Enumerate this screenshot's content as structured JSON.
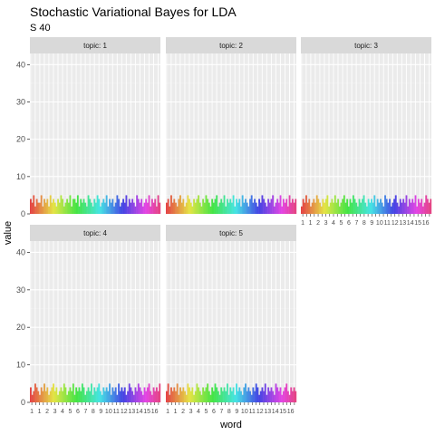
{
  "chart_data": {
    "type": "bar",
    "title": "Stochastic Variational Bayes for LDA",
    "subtitle": "S 40",
    "xlabel": "word",
    "ylabel": "value",
    "ylim": [
      0,
      43
    ],
    "y_ticks": [
      0,
      10,
      20,
      30,
      40
    ],
    "x_tick_labels": [
      "1",
      "1",
      "1",
      "1",
      "2",
      "1",
      "3",
      "1",
      "4",
      "1",
      "5",
      "1",
      "6",
      "1",
      "7",
      "1",
      "8",
      "1",
      "9",
      "1",
      "10",
      "1",
      "11",
      "1",
      "12",
      "1",
      "13",
      "1",
      "14",
      "1",
      "15",
      "1",
      "16",
      "1"
    ],
    "facet_prefix": "topic: ",
    "facets": [
      {
        "topic": "1",
        "values": [
          4,
          3,
          5,
          2,
          4,
          3,
          3,
          5,
          2,
          4,
          3,
          4,
          2,
          5,
          3,
          4,
          3,
          2,
          4,
          3,
          5,
          4,
          2,
          3,
          4,
          3,
          5,
          2,
          4,
          4,
          3,
          5,
          2,
          4,
          3,
          4,
          3,
          2,
          5,
          4,
          3,
          2,
          4,
          3,
          5,
          4,
          2,
          3,
          4,
          3,
          5,
          2,
          4,
          3,
          4,
          2,
          3,
          5,
          4,
          2,
          3,
          4,
          3,
          5,
          2,
          4,
          3,
          4,
          3,
          2,
          5,
          4,
          3,
          4,
          2,
          3,
          4,
          3,
          5,
          2,
          4,
          3,
          4,
          2,
          5,
          3
        ]
      },
      {
        "topic": "2",
        "values": [
          3,
          4,
          2,
          5,
          3,
          4,
          3,
          2,
          4,
          5,
          3,
          4,
          2,
          3,
          5,
          4,
          3,
          2,
          4,
          3,
          4,
          5,
          3,
          2,
          4,
          3,
          5,
          4,
          3,
          2,
          4,
          3,
          4,
          5,
          2,
          3,
          4,
          3,
          5,
          2,
          4,
          3,
          4,
          3,
          5,
          2,
          4,
          3,
          4,
          2,
          5,
          3,
          4,
          3,
          2,
          4,
          5,
          3,
          4,
          3,
          2,
          4,
          3,
          5,
          4,
          3,
          2,
          4,
          3,
          4,
          5,
          2,
          3,
          4,
          3,
          5,
          2,
          4,
          3,
          4,
          2,
          5,
          3,
          4,
          3,
          4
        ]
      },
      {
        "topic": "3",
        "values": [
          2,
          4,
          3,
          5,
          3,
          4,
          2,
          3,
          4,
          3,
          5,
          4,
          3,
          2,
          4,
          3,
          4,
          5,
          2,
          3,
          4,
          3,
          5,
          3,
          4,
          2,
          3,
          4,
          5,
          3,
          4,
          2,
          4,
          3,
          5,
          4,
          3,
          2,
          4,
          3,
          4,
          5,
          3,
          2,
          4,
          3,
          4,
          3,
          5,
          2,
          4,
          3,
          4,
          3,
          2,
          5,
          4,
          3,
          4,
          2,
          3,
          4,
          5,
          3,
          2,
          4,
          3,
          4,
          3,
          5,
          2,
          4,
          3,
          4,
          3,
          5,
          2,
          4,
          3,
          4,
          2,
          3,
          5,
          4,
          3,
          4
        ]
      },
      {
        "topic": "4",
        "values": [
          4,
          2,
          3,
          5,
          4,
          3,
          2,
          4,
          3,
          5,
          3,
          4,
          2,
          3,
          4,
          5,
          3,
          4,
          2,
          3,
          4,
          3,
          5,
          4,
          2,
          3,
          4,
          3,
          5,
          2,
          4,
          3,
          4,
          3,
          5,
          4,
          2,
          3,
          4,
          3,
          5,
          2,
          4,
          3,
          4,
          5,
          3,
          2,
          4,
          3,
          4,
          3,
          5,
          2,
          4,
          3,
          4,
          2,
          5,
          3,
          4,
          3,
          4,
          2,
          3,
          5,
          4,
          3,
          2,
          4,
          3,
          5,
          4,
          3,
          2,
          4,
          3,
          4,
          5,
          3,
          2,
          4,
          3,
          4,
          3,
          5
        ]
      },
      {
        "topic": "5",
        "values": [
          3,
          5,
          2,
          4,
          3,
          4,
          3,
          5,
          2,
          4,
          3,
          4,
          3,
          2,
          5,
          4,
          3,
          4,
          2,
          3,
          5,
          4,
          3,
          2,
          4,
          3,
          4,
          5,
          3,
          2,
          4,
          3,
          5,
          4,
          3,
          2,
          4,
          3,
          4,
          3,
          5,
          2,
          4,
          3,
          4,
          2,
          5,
          3,
          4,
          3,
          2,
          4,
          5,
          3,
          4,
          3,
          2,
          4,
          3,
          5,
          4,
          2,
          3,
          4,
          3,
          5,
          2,
          4,
          3,
          4,
          3,
          2,
          5,
          4,
          3,
          4,
          2,
          3,
          4,
          5,
          3,
          2,
          4,
          3,
          4,
          3
        ]
      }
    ],
    "legend": "none",
    "grid": true,
    "colors": {
      "panel_bg": "#ebebeb",
      "grid_major": "#ffffff",
      "grid_minor": "#f2f2f2",
      "strip_bg": "#d9d9d9",
      "tick_color": "#333333"
    }
  }
}
